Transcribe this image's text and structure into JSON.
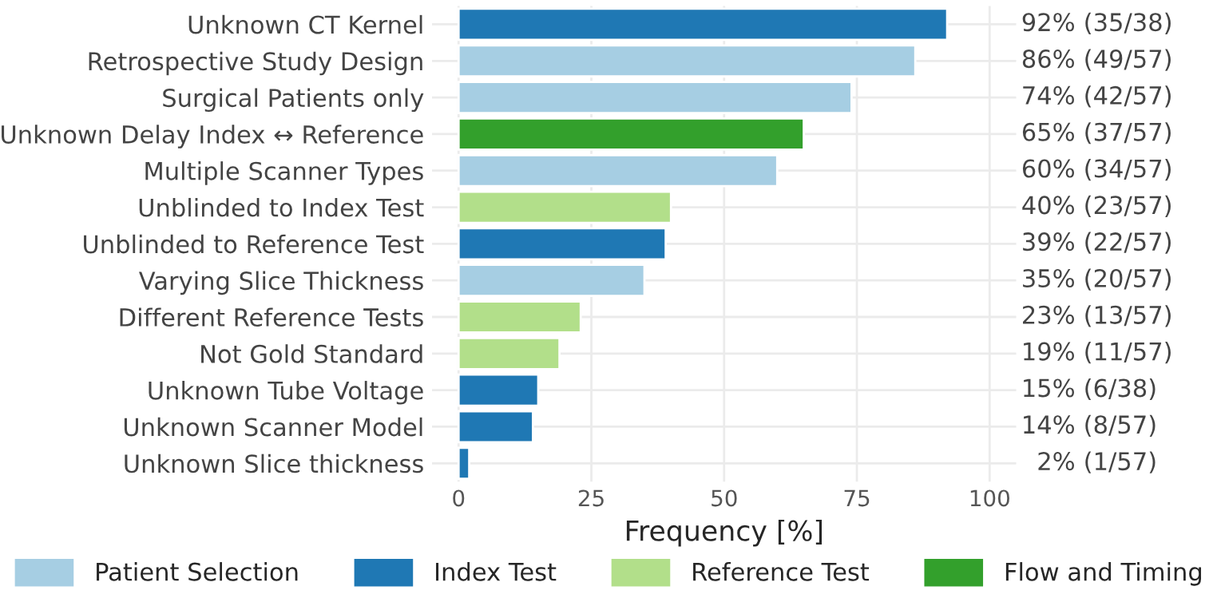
{
  "chart_data": {
    "type": "bar",
    "orientation": "horizontal",
    "xlabel": "Frequency [%]",
    "categories": [
      "Unknown CT Kernel",
      "Retrospective Study Design",
      "Surgical Patients only",
      "Unknown Delay Index ↔ Reference",
      "Multiple Scanner Types",
      "Unblinded to Index Test",
      "Unblinded to Reference Test",
      "Varying Slice Thickness",
      "Different Reference Tests",
      "Not Gold Standard",
      "Unknown Tube Voltage",
      "Unknown Scanner Model",
      "Unknown Slice thickness"
    ],
    "series": [
      {
        "name": "Patient Selection",
        "color": "#a6cee3",
        "values": [
          null,
          86,
          74,
          null,
          60,
          null,
          null,
          35,
          null,
          null,
          null,
          null,
          null
        ]
      },
      {
        "name": "Index Test",
        "color": "#1f78b4",
        "values": [
          92,
          null,
          null,
          null,
          null,
          null,
          39,
          null,
          null,
          null,
          15,
          14,
          2
        ]
      },
      {
        "name": "Reference Test",
        "color": "#b2df8a",
        "values": [
          null,
          null,
          null,
          null,
          null,
          40,
          null,
          null,
          23,
          19,
          null,
          null,
          null
        ]
      },
      {
        "name": "Flow and Timing",
        "color": "#33a02c",
        "values": [
          null,
          null,
          null,
          65,
          null,
          null,
          null,
          null,
          null,
          null,
          null,
          null,
          null
        ]
      }
    ],
    "value_labels": [
      "92%   (35/38)",
      "86%   (49/57)",
      "74%   (42/57)",
      "65%   (37/57)",
      "60%   (34/57)",
      "40%   (23/57)",
      "39%   (22/57)",
      "35%   (20/57)",
      "23%   (13/57)",
      "19%   (11/57)",
      "15%   (6/38)",
      "14%   (8/57)",
      "2%   (1/57)"
    ],
    "xlim": [
      -5,
      105
    ],
    "xticks": [
      0,
      25,
      50,
      75,
      100
    ],
    "grid": true,
    "legend": "bottom"
  }
}
